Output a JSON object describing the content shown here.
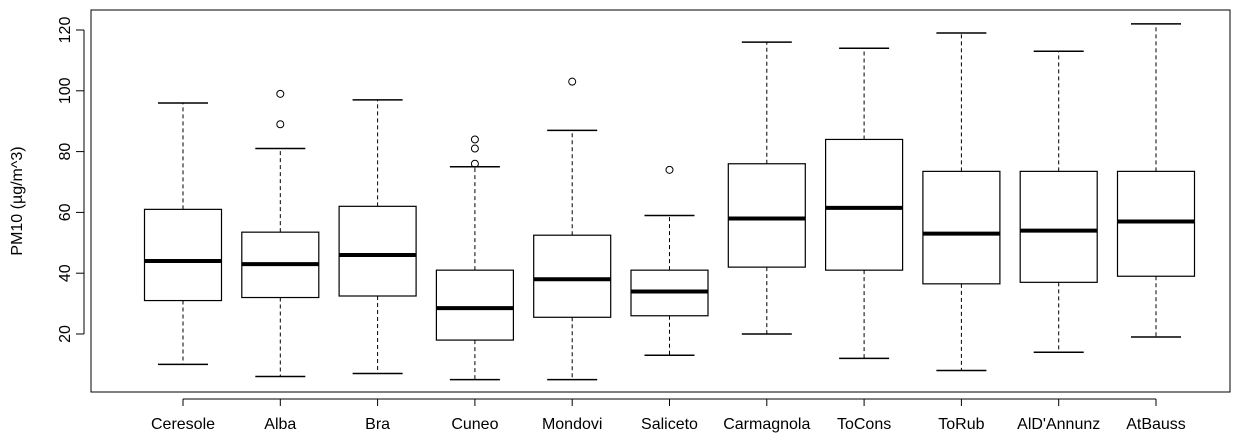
{
  "chart_data": {
    "type": "boxplot",
    "title": "",
    "xlabel": "",
    "ylabel": "PM10 (µg/m^3)",
    "ylim": [
      0,
      125
    ],
    "yticks": [
      20,
      40,
      60,
      80,
      100,
      120
    ],
    "grid": false,
    "legend": "none",
    "colors": {
      "stroke": "#000000",
      "background": "#ffffff"
    },
    "categories": [
      "Ceresole",
      "Alba",
      "Bra",
      "Cuneo",
      "Mondovi",
      "Saliceto",
      "Carmagnola",
      "ToCons",
      "ToRub",
      "AlD'Annunz",
      "AtBauss"
    ],
    "boxes": [
      {
        "name": "Ceresole",
        "lower_whisker": 10,
        "q1": 31,
        "median": 44,
        "q3": 61,
        "upper_whisker": 96,
        "outliers": []
      },
      {
        "name": "Alba",
        "lower_whisker": 6,
        "q1": 32,
        "median": 43,
        "q3": 53.5,
        "upper_whisker": 81,
        "outliers": [
          89,
          99
        ]
      },
      {
        "name": "Bra",
        "lower_whisker": 7,
        "q1": 32.5,
        "median": 46,
        "q3": 62,
        "upper_whisker": 97,
        "outliers": []
      },
      {
        "name": "Cuneo",
        "lower_whisker": 5,
        "q1": 18,
        "median": 28.5,
        "q3": 41,
        "upper_whisker": 75,
        "outliers": [
          76,
          81,
          84
        ]
      },
      {
        "name": "Mondovi",
        "lower_whisker": 5,
        "q1": 25.5,
        "median": 38,
        "q3": 52.5,
        "upper_whisker": 87,
        "outliers": [
          103
        ]
      },
      {
        "name": "Saliceto",
        "lower_whisker": 13,
        "q1": 26,
        "median": 34,
        "q3": 41,
        "upper_whisker": 59,
        "outliers": [
          74
        ]
      },
      {
        "name": "Carmagnola",
        "lower_whisker": 20,
        "q1": 42,
        "median": 58,
        "q3": 76,
        "upper_whisker": 116,
        "outliers": []
      },
      {
        "name": "ToCons",
        "lower_whisker": 12,
        "q1": 41,
        "median": 61.5,
        "q3": 84,
        "upper_whisker": 114,
        "outliers": []
      },
      {
        "name": "ToRub",
        "lower_whisker": 8,
        "q1": 36.5,
        "median": 53,
        "q3": 73.5,
        "upper_whisker": 119,
        "outliers": []
      },
      {
        "name": "AlD'Annunz",
        "lower_whisker": 14,
        "q1": 37,
        "median": 54,
        "q3": 73.5,
        "upper_whisker": 113,
        "outliers": []
      },
      {
        "name": "AtBauss",
        "lower_whisker": 19,
        "q1": 39,
        "median": 57,
        "q3": 73.5,
        "upper_whisker": 122,
        "outliers": []
      }
    ]
  }
}
